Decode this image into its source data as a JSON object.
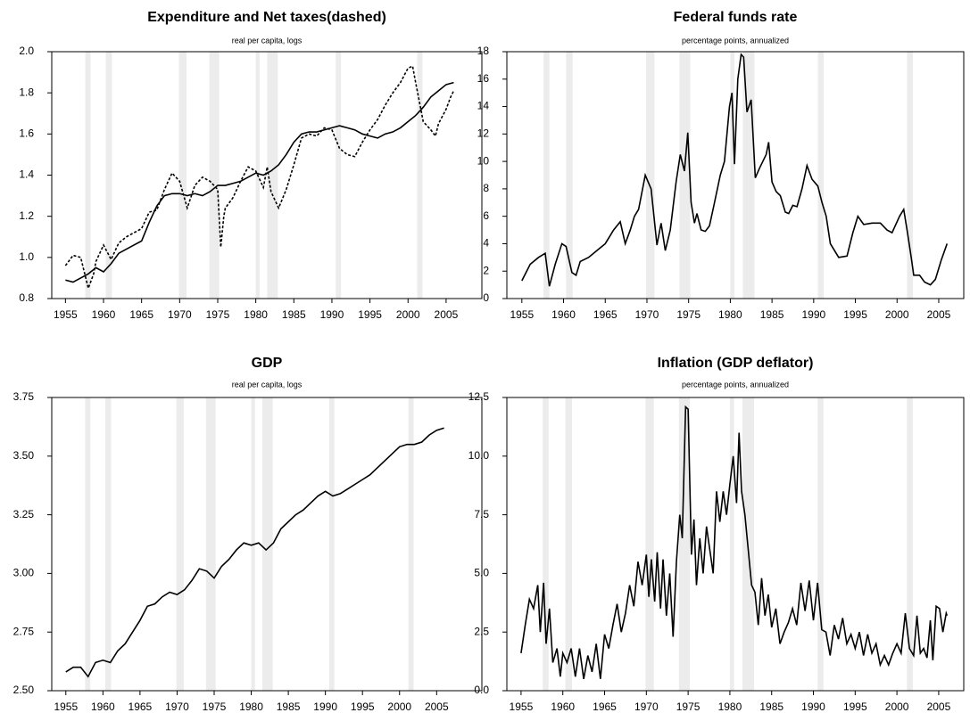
{
  "chart_data": [
    {
      "type": "line",
      "title": "Expenditure and Net taxes(dashed)",
      "subtitle": "real per capita, logs",
      "xlim": [
        1953.2,
        2009.7
      ],
      "xticks": [
        1955,
        1960,
        1965,
        1970,
        1975,
        1980,
        1985,
        1990,
        1995,
        2000,
        2005
      ],
      "ylim": [
        0.8,
        2.0
      ],
      "yticks": [
        0.8,
        {
          "value": 1,
          "label": "1.0"
        },
        1.2,
        1.4,
        1.6,
        1.8,
        {
          "value": 2,
          "label": "2.0"
        }
      ],
      "shaded": [
        [
          1957.6,
          1958.3
        ],
        [
          1960.3,
          1961.1
        ],
        [
          1969.9,
          1970.9
        ],
        [
          1973.9,
          1975.2
        ],
        [
          1980.0,
          1980.5
        ],
        [
          1981.5,
          1982.9
        ],
        [
          1990.5,
          1991.2
        ],
        [
          2001.2,
          2001.9
        ]
      ],
      "series": [
        {
          "style": "solid",
          "color": "#000000",
          "x": [
            1955,
            1956,
            1957,
            1958,
            1959,
            1960,
            1961,
            1962,
            1963,
            1964,
            1965,
            1966,
            1967,
            1968,
            1969,
            1970,
            1971,
            1972,
            1973,
            1974,
            1975,
            1976,
            1977,
            1978,
            1979,
            1980,
            1981,
            1982,
            1983,
            1984,
            1985,
            1986,
            1987,
            1988,
            1989,
            1990,
            1991,
            1992,
            1993,
            1994,
            1995,
            1996,
            1997,
            1998,
            1999,
            2000,
            2001,
            2002,
            2003,
            2004,
            2005,
            2006
          ],
          "values": [
            0.89,
            0.88,
            0.9,
            0.92,
            0.95,
            0.93,
            0.97,
            1.02,
            1.04,
            1.06,
            1.08,
            1.17,
            1.25,
            1.3,
            1.31,
            1.31,
            1.3,
            1.31,
            1.3,
            1.32,
            1.35,
            1.35,
            1.36,
            1.37,
            1.39,
            1.41,
            1.4,
            1.42,
            1.45,
            1.5,
            1.56,
            1.6,
            1.61,
            1.61,
            1.62,
            1.63,
            1.64,
            1.63,
            1.62,
            1.6,
            1.59,
            1.58,
            1.6,
            1.61,
            1.63,
            1.66,
            1.69,
            1.73,
            1.78,
            1.81,
            1.84,
            1.85
          ]
        },
        {
          "style": "dashed",
          "color": "#000000",
          "x": [
            1955,
            1956,
            1957,
            1958,
            1958.7,
            1959,
            1960,
            1961,
            1962,
            1963,
            1964,
            1965,
            1966,
            1967,
            1968,
            1969,
            1970,
            1971,
            1972,
            1973,
            1974,
            1975,
            1975.4,
            1975.8,
            1976,
            1977,
            1978,
            1979,
            1980,
            1981,
            1981.5,
            1982,
            1983,
            1984,
            1985,
            1986,
            1987,
            1988,
            1989,
            1990,
            1991,
            1992,
            1993,
            1994,
            1995,
            1996,
            1997,
            1998,
            1999,
            2000,
            2000.6,
            2001,
            2002,
            2003,
            2003.6,
            2004,
            2005,
            2005.6,
            2006
          ],
          "values": [
            0.96,
            1.01,
            1.0,
            0.85,
            0.92,
            0.98,
            1.06,
            0.99,
            1.07,
            1.1,
            1.12,
            1.14,
            1.22,
            1.23,
            1.33,
            1.41,
            1.37,
            1.24,
            1.35,
            1.39,
            1.37,
            1.33,
            1.05,
            1.2,
            1.24,
            1.29,
            1.37,
            1.44,
            1.42,
            1.34,
            1.44,
            1.32,
            1.24,
            1.33,
            1.45,
            1.58,
            1.6,
            1.59,
            1.63,
            1.62,
            1.53,
            1.5,
            1.49,
            1.56,
            1.62,
            1.67,
            1.74,
            1.8,
            1.85,
            1.92,
            1.93,
            1.85,
            1.66,
            1.62,
            1.59,
            1.65,
            1.72,
            1.78,
            1.81
          ]
        }
      ]
    },
    {
      "type": "line",
      "title": "Federal funds rate",
      "subtitle": "percentage points, annualized",
      "xlim": [
        1953.2,
        2008.0
      ],
      "xticks": [
        1955,
        1960,
        1965,
        1970,
        1975,
        1980,
        1985,
        1990,
        1995,
        2000,
        2005
      ],
      "ylim": [
        0,
        18
      ],
      "yticks": [
        0,
        2,
        4,
        6,
        8,
        10,
        12,
        14,
        16,
        18
      ],
      "shaded": [
        [
          1957.6,
          1958.3
        ],
        [
          1960.3,
          1961.1
        ],
        [
          1969.9,
          1970.9
        ],
        [
          1973.9,
          1975.2
        ],
        [
          1980.0,
          1980.5
        ],
        [
          1981.5,
          1982.9
        ],
        [
          1990.5,
          1991.2
        ],
        [
          2001.2,
          2001.9
        ]
      ],
      "series": [
        {
          "style": "solid",
          "color": "#000000",
          "x": [
            1955,
            1956,
            1957,
            1957.8,
            1958.3,
            1959,
            1959.8,
            1960.3,
            1961,
            1961.5,
            1962,
            1963,
            1964,
            1965,
            1966,
            1966.8,
            1967.4,
            1968,
            1968.5,
            1969,
            1969.8,
            1970.5,
            1971.2,
            1971.7,
            1972.2,
            1972.8,
            1973.5,
            1974,
            1974.5,
            1974.9,
            1975.3,
            1975.7,
            1976,
            1976.5,
            1977,
            1977.5,
            1978,
            1978.8,
            1979.3,
            1979.9,
            1980.2,
            1980.5,
            1980.9,
            1981.3,
            1981.6,
            1982,
            1982.5,
            1983,
            1983.5,
            1984.3,
            1984.6,
            1985,
            1985.5,
            1986,
            1986.6,
            1987,
            1987.5,
            1988,
            1988.6,
            1989.2,
            1989.8,
            1990.5,
            1991,
            1991.5,
            1992,
            1993,
            1994,
            1994.7,
            1995.3,
            1996,
            1997,
            1998,
            1998.8,
            1999.4,
            2000.3,
            2000.8,
            2001.2,
            2001.7,
            2002,
            2002.7,
            2003.3,
            2004,
            2004.6,
            2005.3,
            2006
          ],
          "values": [
            1.3,
            2.5,
            3.0,
            3.3,
            0.9,
            2.5,
            4.0,
            3.8,
            1.9,
            1.7,
            2.7,
            3.0,
            3.5,
            4.0,
            5.0,
            5.6,
            4.0,
            5.0,
            6.0,
            6.5,
            9.0,
            8.0,
            3.9,
            5.5,
            3.5,
            5.0,
            8.5,
            10.5,
            9.3,
            12.1,
            7.0,
            5.5,
            6.2,
            5.0,
            4.9,
            5.3,
            6.7,
            9.0,
            10.0,
            14.0,
            15.0,
            9.8,
            16.0,
            17.8,
            17.6,
            13.6,
            14.5,
            8.8,
            9.5,
            10.5,
            11.4,
            8.5,
            7.8,
            7.5,
            6.3,
            6.2,
            6.8,
            6.7,
            8.0,
            9.7,
            8.7,
            8.2,
            7.0,
            6.0,
            4.0,
            3.0,
            3.1,
            4.8,
            6.0,
            5.4,
            5.5,
            5.5,
            5.0,
            4.8,
            6.0,
            6.5,
            5.0,
            3.0,
            1.7,
            1.7,
            1.2,
            1.0,
            1.4,
            2.8,
            4.0
          ]
        }
      ]
    },
    {
      "type": "line",
      "title": "GDP",
      "subtitle": "real per capita, logs",
      "xlim": [
        1953.1,
        2011.1
      ],
      "xticks": [
        1955,
        1960,
        1965,
        1970,
        1975,
        1980,
        1985,
        1990,
        1995,
        2000,
        2005
      ],
      "ylim": [
        2.5,
        3.75
      ],
      "yticks": [
        {
          "value": 2.5,
          "label": "2.50"
        },
        2.75,
        {
          "value": 3,
          "label": "3.00"
        },
        3.25,
        {
          "value": 3.5,
          "label": "3.50"
        },
        3.75
      ],
      "shaded": [
        [
          1957.6,
          1958.3
        ],
        [
          1960.3,
          1961.1
        ],
        [
          1969.9,
          1970.9
        ],
        [
          1973.9,
          1975.2
        ],
        [
          1980.0,
          1980.5
        ],
        [
          1981.5,
          1982.9
        ],
        [
          1990.5,
          1991.2
        ],
        [
          2001.2,
          2001.9
        ]
      ],
      "series": [
        {
          "style": "solid",
          "color": "#000000",
          "x": [
            1955,
            1956,
            1957,
            1958,
            1959,
            1960,
            1961,
            1962,
            1963,
            1964,
            1965,
            1966,
            1967,
            1968,
            1969,
            1970,
            1971,
            1972,
            1973,
            1974,
            1975,
            1976,
            1977,
            1978,
            1979,
            1980,
            1981,
            1982,
            1983,
            1984,
            1985,
            1986,
            1987,
            1988,
            1989,
            1990,
            1991,
            1992,
            1993,
            1994,
            1995,
            1996,
            1997,
            1998,
            1999,
            2000,
            2001,
            2002,
            2003,
            2004,
            2005,
            2006
          ],
          "values": [
            2.58,
            2.6,
            2.6,
            2.56,
            2.62,
            2.63,
            2.62,
            2.67,
            2.7,
            2.75,
            2.8,
            2.86,
            2.87,
            2.9,
            2.92,
            2.91,
            2.93,
            2.97,
            3.02,
            3.01,
            2.98,
            3.03,
            3.06,
            3.1,
            3.13,
            3.12,
            3.13,
            3.1,
            3.13,
            3.19,
            3.22,
            3.25,
            3.27,
            3.3,
            3.33,
            3.35,
            3.33,
            3.34,
            3.36,
            3.38,
            3.4,
            3.42,
            3.45,
            3.48,
            3.51,
            3.54,
            3.55,
            3.55,
            3.56,
            3.59,
            3.61,
            3.62
          ]
        }
      ]
    },
    {
      "type": "line",
      "title": "Inflation (GDP deflator)",
      "subtitle": "percentage points, annualized",
      "xlim": [
        1953.3,
        2008.0
      ],
      "xticks": [
        1955,
        1960,
        1965,
        1970,
        1975,
        1980,
        1985,
        1990,
        1995,
        2000,
        2005
      ],
      "ylim": [
        0,
        12.5
      ],
      "yticks": [
        {
          "value": 0,
          "label": "0.0"
        },
        2.5,
        {
          "value": 5,
          "label": "5.0"
        },
        7.5,
        {
          "value": 10,
          "label": "10.0"
        },
        12.5
      ],
      "shaded": [
        [
          1957.6,
          1958.3
        ],
        [
          1960.3,
          1961.1
        ],
        [
          1969.9,
          1970.9
        ],
        [
          1973.9,
          1975.2
        ],
        [
          1980.0,
          1980.5
        ],
        [
          1981.5,
          1982.9
        ],
        [
          1990.5,
          1991.2
        ],
        [
          2001.2,
          2001.9
        ]
      ],
      "series": [
        {
          "style": "solid",
          "color": "#000000",
          "x": [
            1955,
            1955.5,
            1956,
            1956.5,
            1957,
            1957.3,
            1957.7,
            1958,
            1958.4,
            1958.8,
            1959.3,
            1959.7,
            1960,
            1960.5,
            1961,
            1961.5,
            1962,
            1962.5,
            1963,
            1963.5,
            1964,
            1964.5,
            1965,
            1965.5,
            1966,
            1966.5,
            1967,
            1967.5,
            1968,
            1968.5,
            1969,
            1969.5,
            1970,
            1970.3,
            1970.6,
            1971,
            1971.3,
            1971.7,
            1972,
            1972.4,
            1972.8,
            1973.2,
            1973.6,
            1974,
            1974.3,
            1974.7,
            1975,
            1975.4,
            1975.7,
            1976,
            1976.4,
            1976.8,
            1977.2,
            1977.6,
            1978,
            1978.4,
            1978.8,
            1979.2,
            1979.6,
            1980,
            1980.4,
            1980.8,
            1981.1,
            1981.4,
            1981.8,
            1982.2,
            1982.6,
            1983,
            1983.4,
            1983.8,
            1984.2,
            1984.6,
            1985,
            1985.5,
            1986,
            1986.5,
            1987,
            1987.5,
            1988,
            1988.5,
            1989,
            1989.5,
            1990,
            1990.5,
            1991,
            1991.5,
            1992,
            1992.5,
            1993,
            1993.5,
            1994,
            1994.5,
            1995,
            1995.5,
            1996,
            1996.5,
            1997,
            1997.5,
            1998,
            1998.5,
            1999,
            1999.5,
            2000,
            2000.5,
            2001,
            2001.5,
            2002,
            2002.4,
            2002.8,
            2003.2,
            2003.6,
            2004,
            2004.3,
            2004.7,
            2005.1,
            2005.5,
            2005.9,
            2006
          ],
          "values": [
            1.6,
            2.8,
            3.9,
            3.5,
            4.5,
            2.5,
            4.6,
            2.0,
            3.5,
            1.2,
            1.8,
            0.6,
            1.6,
            1.2,
            1.8,
            0.6,
            1.8,
            0.5,
            1.5,
            0.8,
            2.0,
            0.5,
            2.4,
            1.8,
            2.8,
            3.7,
            2.5,
            3.3,
            4.5,
            3.6,
            5.5,
            4.5,
            5.8,
            4.0,
            5.6,
            3.8,
            5.9,
            3.5,
            5.6,
            3.2,
            5.0,
            2.3,
            5.5,
            7.5,
            6.5,
            12.1,
            12.0,
            5.8,
            7.3,
            4.5,
            6.5,
            5.0,
            7.0,
            6.0,
            5.0,
            8.5,
            7.2,
            8.5,
            7.5,
            8.8,
            10.0,
            8.0,
            11.0,
            8.5,
            7.5,
            6.0,
            4.5,
            4.2,
            2.8,
            4.8,
            3.2,
            4.1,
            2.7,
            3.5,
            2.0,
            2.5,
            2.9,
            3.5,
            2.8,
            4.6,
            3.4,
            4.7,
            3.0,
            4.6,
            2.6,
            2.5,
            1.5,
            2.8,
            2.2,
            3.1,
            2.0,
            2.4,
            1.8,
            2.5,
            1.5,
            2.4,
            1.6,
            2.0,
            1.1,
            1.5,
            1.1,
            1.6,
            2.0,
            1.6,
            3.3,
            1.8,
            1.5,
            3.2,
            1.6,
            1.8,
            1.4,
            3.0,
            1.3,
            3.6,
            3.5,
            2.5,
            3.3,
            3.2
          ]
        }
      ]
    }
  ]
}
